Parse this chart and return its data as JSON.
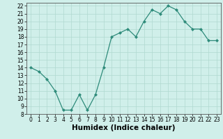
{
  "x": [
    0,
    1,
    2,
    3,
    4,
    5,
    6,
    7,
    8,
    9,
    10,
    11,
    12,
    13,
    14,
    15,
    16,
    17,
    18,
    19,
    20,
    21,
    22,
    23
  ],
  "y": [
    14,
    13.5,
    12.5,
    11,
    8.5,
    8.5,
    10.5,
    8.5,
    10.5,
    14,
    18,
    18.5,
    19,
    18,
    20,
    21.5,
    21,
    22,
    21.5,
    20,
    19,
    19,
    17.5,
    17.5
  ],
  "line_color": "#2e8b7a",
  "marker_color": "#2e8b7a",
  "bg_color": "#d0efea",
  "grid_color": "#b0d9d0",
  "xlabel": "Humidex (Indice chaleur)",
  "xlim": [
    -0.5,
    23.5
  ],
  "ylim": [
    8,
    22.4
  ],
  "yticks": [
    8,
    9,
    10,
    11,
    12,
    13,
    14,
    15,
    16,
    17,
    18,
    19,
    20,
    21,
    22
  ],
  "xticks": [
    0,
    1,
    2,
    3,
    4,
    5,
    6,
    7,
    8,
    9,
    10,
    11,
    12,
    13,
    14,
    15,
    16,
    17,
    18,
    19,
    20,
    21,
    22,
    23
  ],
  "tick_fontsize": 5.5,
  "xlabel_fontsize": 7.5,
  "spine_color": "#555555"
}
